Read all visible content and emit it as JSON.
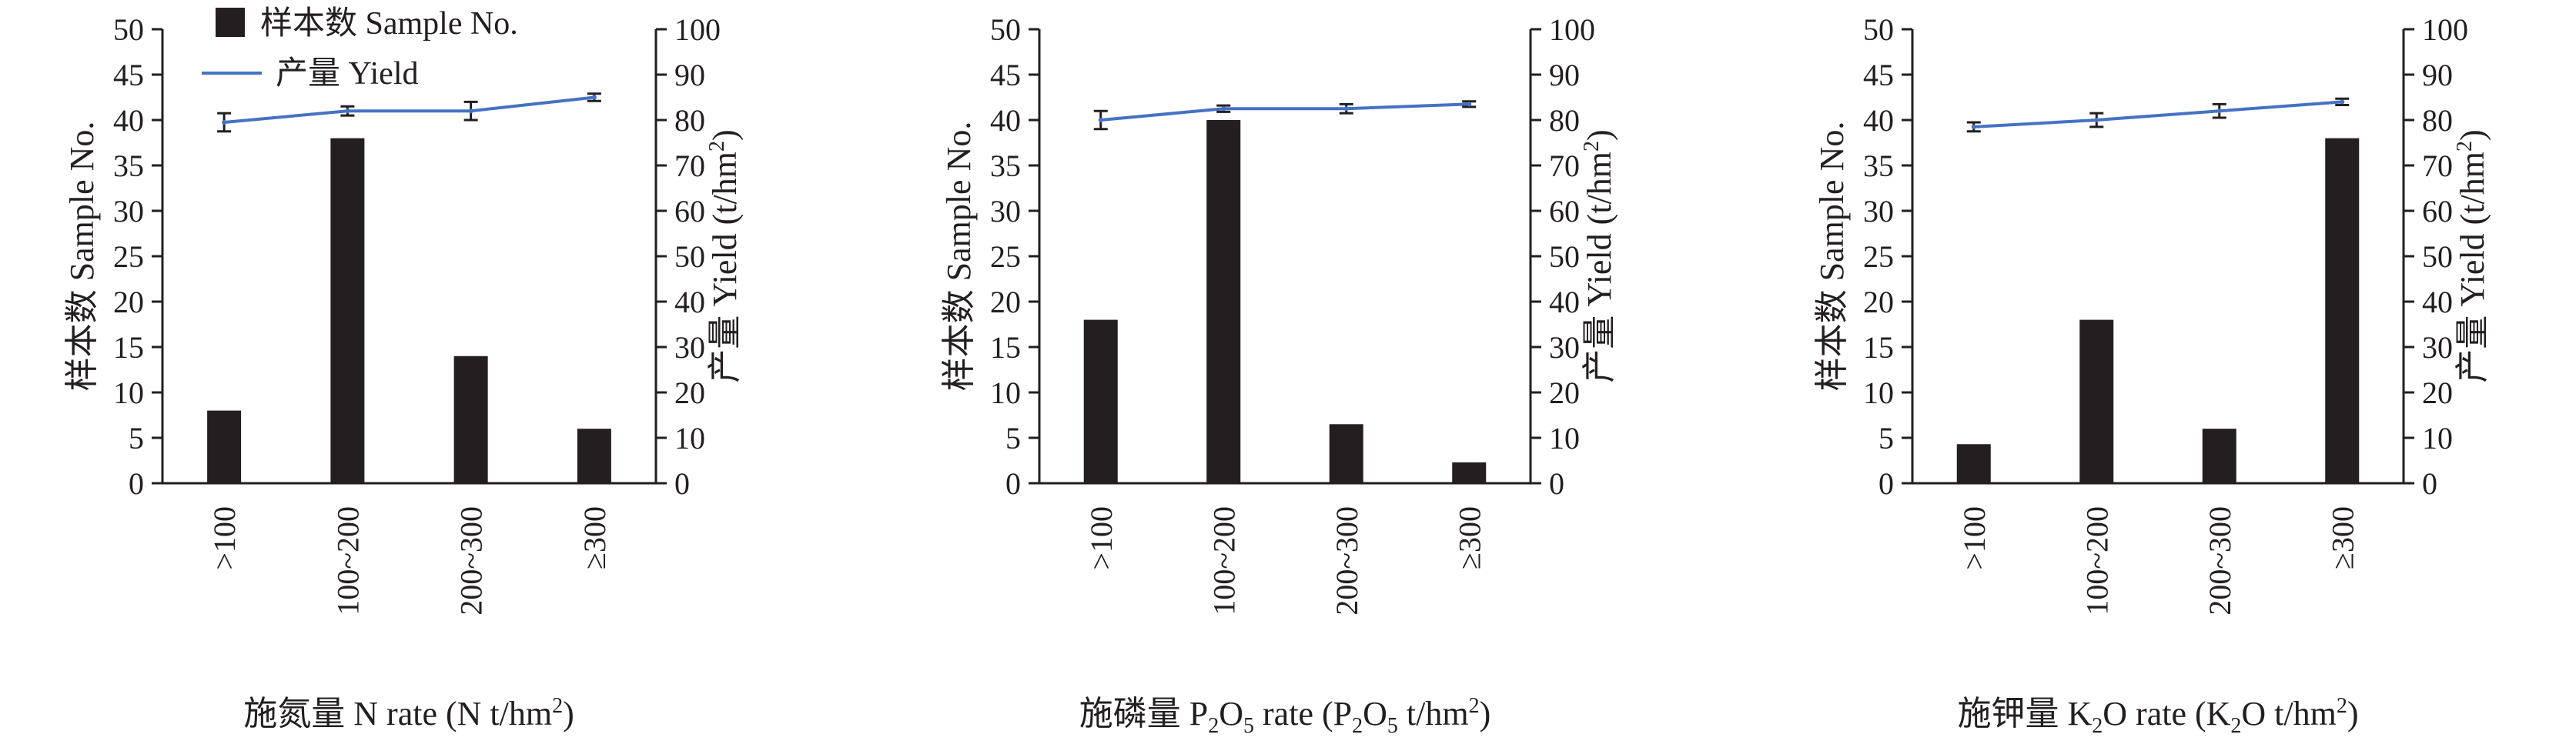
{
  "chart_data": [
    {
      "type": "bar",
      "xlabel": {
        "pre": "施氮量 N rate (N t/hm",
        "sup": "2",
        "post": ")"
      },
      "categories": [
        ">100",
        "100~200",
        "200~300",
        "≥300"
      ],
      "series": [
        {
          "name": "样本数 Sample No.",
          "type": "bar",
          "axis": "left",
          "values": [
            8,
            38,
            14,
            6
          ]
        },
        {
          "name": "产量 Yield",
          "type": "line",
          "axis": "right",
          "values": [
            79.5,
            82,
            82,
            85
          ],
          "error": [
            2,
            1,
            2,
            0.8
          ]
        }
      ],
      "ylabel": "样本数 Sample No.",
      "y2label": {
        "pre": "产量 Yield (t/hm",
        "sup": "2",
        "post": ")"
      },
      "ylim": [
        0,
        50
      ],
      "y2lim": [
        0,
        100
      ],
      "yticks": [
        "0",
        "5",
        "10",
        "15",
        "20",
        "25",
        "30",
        "35",
        "40",
        "45",
        "50"
      ],
      "y2ticks": [
        "0",
        "10",
        "20",
        "30",
        "40",
        "50",
        "60",
        "70",
        "80",
        "90",
        "100"
      ],
      "legend": "top-left"
    },
    {
      "type": "bar",
      "xlabel": {
        "pre": "施磷量 P",
        "sub1": "2",
        "mid": "O",
        "sub2": "5",
        "mid2": " rate (P",
        "sub3": "2",
        "mid3": "O",
        "sub4": "5",
        "mid4": " t/hm",
        "sup": "2",
        "post": ")"
      },
      "categories": [
        ">100",
        "100~200",
        "200~300",
        "≥300"
      ],
      "series": [
        {
          "name": "样本数 Sample No.",
          "type": "bar",
          "axis": "left",
          "values": [
            18,
            40,
            6.5,
            2.3
          ]
        },
        {
          "name": "产量 Yield",
          "type": "line",
          "axis": "right",
          "values": [
            80,
            82.5,
            82.5,
            83.5
          ],
          "error": [
            2,
            0.7,
            1,
            0.6
          ]
        }
      ],
      "ylabel": "样本数 Sample No.",
      "y2label": {
        "pre": "产量 Yield (t/hm",
        "sup": "2",
        "post": ")"
      },
      "ylim": [
        0,
        50
      ],
      "y2lim": [
        0,
        100
      ],
      "yticks": [
        "0",
        "5",
        "10",
        "15",
        "20",
        "25",
        "30",
        "35",
        "40",
        "45",
        "50"
      ],
      "y2ticks": [
        "0",
        "10",
        "20",
        "30",
        "40",
        "50",
        "60",
        "70",
        "80",
        "90",
        "100"
      ]
    },
    {
      "type": "bar",
      "xlabel": {
        "pre": "施钾量 K",
        "sub1": "2",
        "mid": "O rate (K",
        "sub2": "2",
        "mid2": "O t/hm",
        "sup": "2",
        "post": ")"
      },
      "categories": [
        ">100",
        "100~200",
        "200~300",
        "≥300"
      ],
      "series": [
        {
          "name": "样本数 Sample No.",
          "type": "bar",
          "axis": "left",
          "values": [
            4.3,
            18,
            6,
            38
          ]
        },
        {
          "name": "产量 Yield",
          "type": "line",
          "axis": "right",
          "values": [
            78.5,
            80,
            82,
            84
          ],
          "error": [
            1,
            1.5,
            1.5,
            0.7
          ]
        }
      ],
      "ylabel": "样本数 Sample No.",
      "y2label": {
        "pre": "产量 Yield (t/hm",
        "sup": "2",
        "post": ")"
      },
      "ylim": [
        0,
        50
      ],
      "y2lim": [
        0,
        100
      ],
      "yticks": [
        "0",
        "5",
        "10",
        "15",
        "20",
        "25",
        "30",
        "35",
        "40",
        "45",
        "50"
      ],
      "y2ticks": [
        "0",
        "10",
        "20",
        "30",
        "40",
        "50",
        "60",
        "70",
        "80",
        "90",
        "100"
      ]
    }
  ],
  "colors": {
    "bar": "#231f20",
    "line": "#4472c4",
    "axis": "#231f20"
  }
}
